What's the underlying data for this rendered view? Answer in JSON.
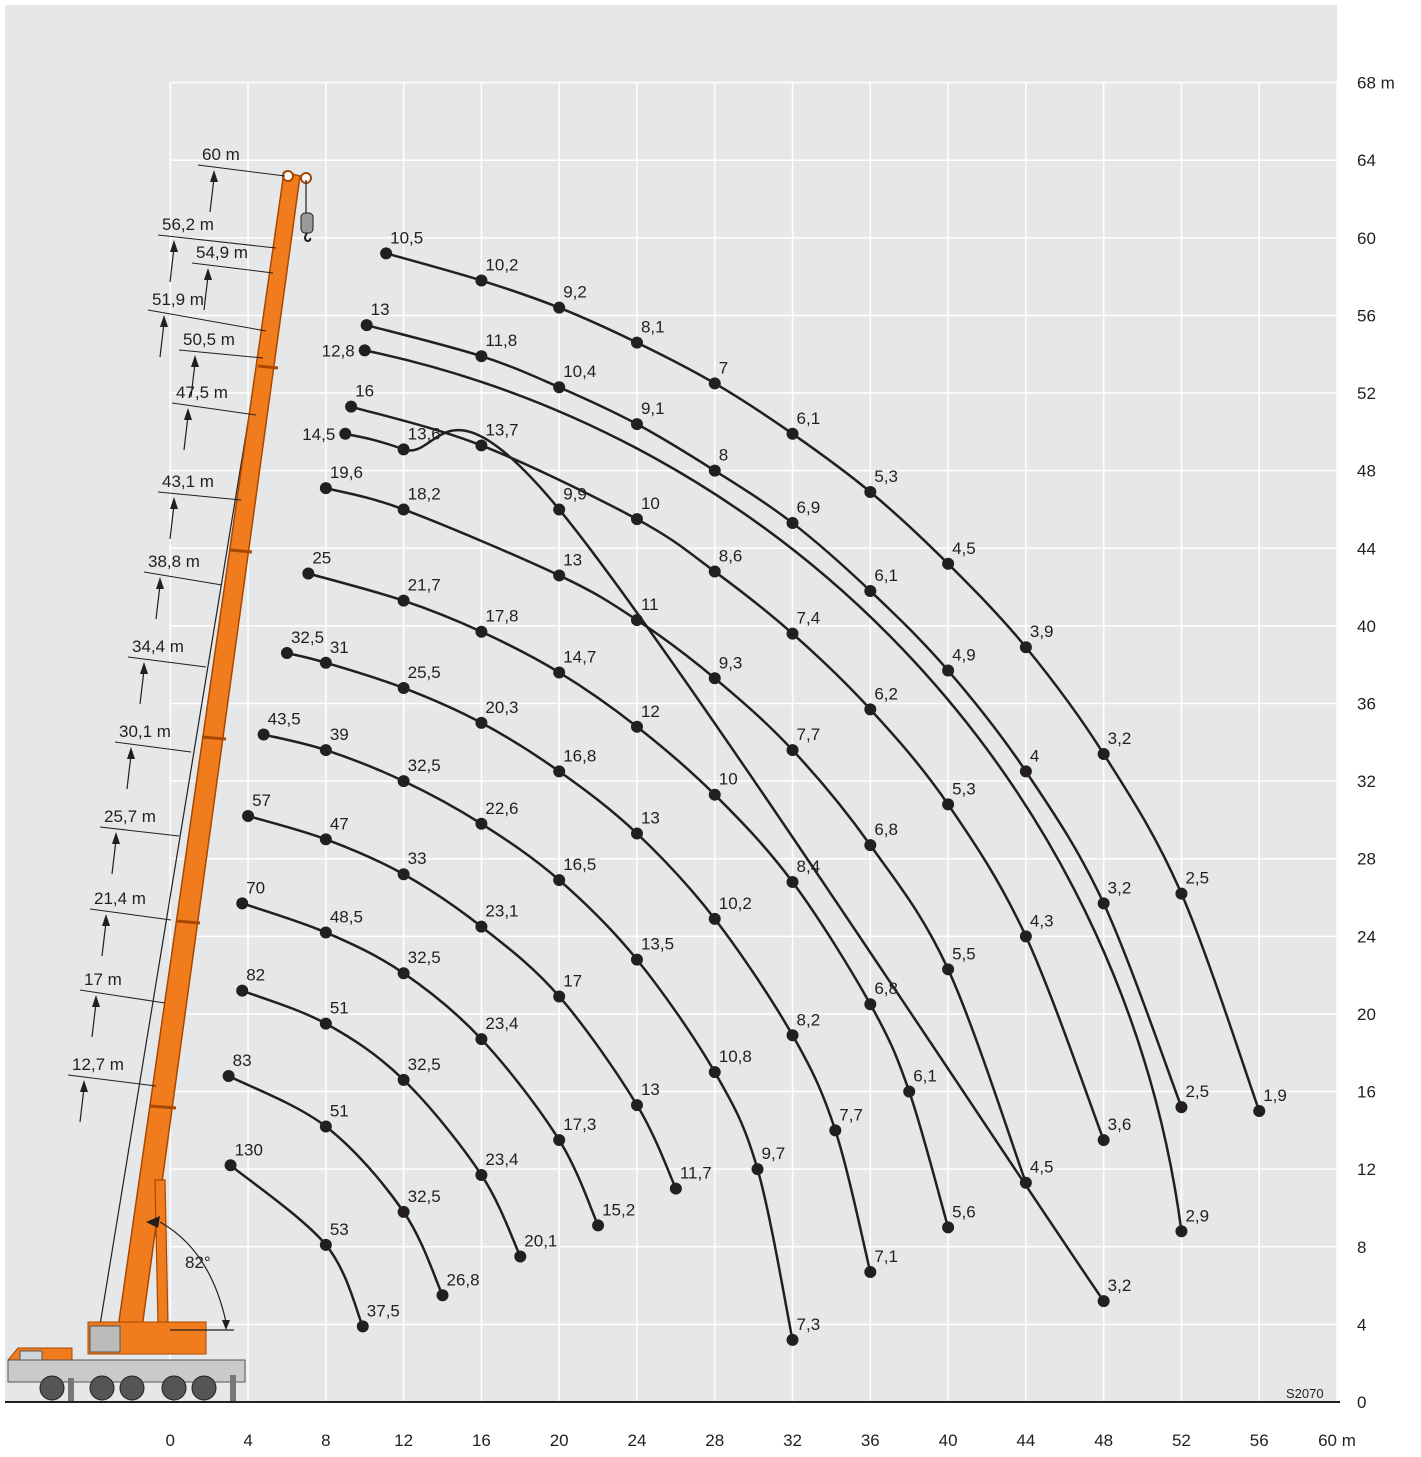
{
  "chart_data": {
    "type": "load_curves",
    "xlim": [
      -8.5,
      60
    ],
    "ylim": [
      0,
      72
    ],
    "xticks": [
      0,
      4,
      8,
      12,
      16,
      20,
      24,
      28,
      32,
      36,
      40,
      44,
      48,
      52,
      56,
      {
        "value": 60,
        "label": "60 m"
      }
    ],
    "yticks": [
      0,
      4,
      8,
      12,
      16,
      20,
      24,
      28,
      32,
      36,
      40,
      44,
      48,
      52,
      56,
      60,
      64,
      {
        "value": 68,
        "label": "68 m"
      }
    ],
    "grid": true,
    "background": "#e6e7e9",
    "grid_color": "#ffffff",
    "line_color": "#231f20",
    "boom_color": "#f07c1e",
    "boom_lengths": [
      "60 m",
      "56,2 m",
      "54,9 m",
      "51,9 m",
      "50,5 m",
      "47,5 m",
      "43,1 m",
      "38,8 m",
      "34,4 m",
      "30,1 m",
      "25,7 m",
      "21,4 m",
      "17 m",
      "12,7 m"
    ],
    "angle_label": "82°",
    "code": "S2070",
    "curves": [
      {
        "x": [
          11.1,
          16,
          20,
          24,
          28,
          32,
          36,
          40,
          44,
          48,
          52,
          56
        ],
        "y": [
          59.2,
          57.8,
          56.4,
          54.6,
          52.5,
          49.9,
          46.9,
          43.2,
          38.9,
          33.4,
          26.2,
          15.0
        ],
        "values": [
          10.5,
          10.2,
          9.2,
          8.1,
          7,
          6.1,
          5.3,
          4.5,
          3.9,
          3.2,
          2.5,
          1.9
        ],
        "value_labels": [
          "10,5",
          "10,2",
          "9,2",
          "8,1",
          "7",
          "6,1",
          "5,3",
          "4,5",
          "3,9",
          "3,2",
          "2,5",
          "1,9"
        ]
      },
      {
        "x": [
          10.1,
          16,
          20,
          24,
          28,
          32,
          36,
          40,
          44,
          48,
          52
        ],
        "y": [
          55.5,
          53.9,
          52.3,
          50.4,
          48.0,
          45.3,
          41.8,
          37.7,
          32.5,
          25.7,
          15.2
        ],
        "values": [
          13,
          11.8,
          10.4,
          9.1,
          8,
          6.9,
          6.1,
          4.9,
          4,
          3.2,
          2.5
        ],
        "value_labels": [
          "13",
          "11,8",
          "10,4",
          "9,1",
          "8",
          "6,9",
          "6,1",
          "4,9",
          "4",
          "3,2",
          "2,5"
        ]
      },
      {
        "x": [
          10.0,
          52
        ],
        "y": [
          54.2,
          8.8
        ],
        "values": [
          12.8,
          2.9
        ],
        "value_labels": [
          "12,8",
          "2,9"
        ]
      },
      {
        "x": [
          9.3,
          16,
          24,
          28,
          32,
          36,
          40,
          44,
          48
        ],
        "y": [
          51.3,
          49.3,
          45.5,
          42.8,
          39.6,
          35.7,
          30.8,
          24.0,
          13.5
        ],
        "values": [
          16,
          13.7,
          10,
          8.6,
          7.4,
          6.2,
          5.3,
          4.3,
          3.6
        ],
        "value_labels": [
          "16",
          "13,7",
          "10",
          "8,6",
          "7,4",
          "6,2",
          "5,3",
          "4,3",
          "3,6"
        ]
      },
      {
        "x": [
          9.0,
          12,
          20,
          48
        ],
        "y": [
          49.9,
          49.1,
          46.0,
          5.2
        ],
        "values": [
          14.5,
          13.6,
          9.9,
          3.2
        ],
        "value_labels": [
          "14,5",
          "13,6",
          "9,9",
          "3,2"
        ]
      },
      {
        "x": [
          8.0,
          12,
          20,
          24,
          28,
          32,
          36,
          40,
          44
        ],
        "y": [
          47.1,
          46.0,
          42.6,
          40.3,
          37.3,
          33.6,
          28.7,
          22.3,
          11.3
        ],
        "values": [
          19.6,
          18.2,
          13,
          11,
          9.3,
          7.7,
          6.8,
          5.5,
          4.5
        ],
        "value_labels": [
          "19,6",
          "18,2",
          "13",
          "11",
          "9,3",
          "7,7",
          "6,8",
          "5,5",
          "4,5"
        ]
      },
      {
        "x": [
          7.1,
          12,
          16,
          20,
          24,
          28,
          32,
          36,
          38,
          40
        ],
        "y": [
          42.7,
          41.3,
          39.7,
          37.6,
          34.8,
          31.3,
          26.8,
          20.5,
          16.0,
          9.0
        ],
        "values": [
          25,
          21.7,
          17.8,
          14.7,
          12,
          10,
          8.4,
          6.8,
          6.1,
          5.6
        ],
        "value_labels": [
          "25",
          "21,7",
          "17,8",
          "14,7",
          "12",
          "10",
          "8,4",
          "6,8",
          "6,1",
          "5,6"
        ]
      },
      {
        "x": [
          6.0,
          8,
          12,
          16,
          20,
          24,
          28,
          32,
          34.2,
          36
        ],
        "y": [
          38.6,
          38.1,
          36.8,
          35.0,
          32.5,
          29.3,
          24.9,
          18.9,
          14.0,
          6.7
        ],
        "values": [
          32.5,
          31,
          25.5,
          20.3,
          16.8,
          13,
          10.2,
          8.2,
          7.7,
          7.1
        ],
        "value_labels": [
          "32,5",
          "31",
          "25,5",
          "20,3",
          "16,8",
          "13",
          "10,2",
          "8,2",
          "7,7",
          "7,1"
        ]
      },
      {
        "x": [
          4.8,
          8,
          12,
          16,
          20,
          24,
          28,
          30.2,
          32
        ],
        "y": [
          34.4,
          33.6,
          32.0,
          29.8,
          26.9,
          22.8,
          17.0,
          12.0,
          3.2
        ],
        "values": [
          43.5,
          39,
          32.5,
          22.6,
          16.5,
          13.5,
          10.8,
          9.7,
          7.3
        ],
        "value_labels": [
          "43,5",
          "39",
          "32,5",
          "22,6",
          "16,5",
          "13,5",
          "10,8",
          "9,7",
          "7,3"
        ]
      },
      {
        "x": [
          4.0,
          8,
          12,
          16,
          20,
          24,
          26
        ],
        "y": [
          30.2,
          29.0,
          27.2,
          24.5,
          20.9,
          15.3,
          11.0
        ],
        "values": [
          57,
          47,
          33,
          23.1,
          17,
          13,
          11.7
        ],
        "value_labels": [
          "57",
          "47",
          "33",
          "23,1",
          "17",
          "13",
          "11,7"
        ]
      },
      {
        "x": [
          3.7,
          8,
          12,
          16,
          20,
          22
        ],
        "y": [
          25.7,
          24.2,
          22.1,
          18.7,
          13.5,
          9.1
        ],
        "values": [
          70,
          48.5,
          32.5,
          23.4,
          17.3,
          15.2
        ],
        "value_labels": [
          "70",
          "48,5",
          "32,5",
          "23,4",
          "17,3",
          "15,2"
        ]
      },
      {
        "x": [
          3.7,
          8,
          12,
          16,
          18
        ],
        "y": [
          21.2,
          19.5,
          16.6,
          11.7,
          7.5
        ],
        "values": [
          82,
          51,
          32.5,
          23.4,
          20.1
        ],
        "value_labels": [
          "82",
          "51",
          "32,5",
          "23,4",
          "20,1"
        ]
      },
      {
        "x": [
          3.0,
          8,
          12,
          14
        ],
        "y": [
          16.8,
          14.2,
          9.8,
          5.5
        ],
        "values": [
          83,
          51,
          32.5,
          26.8
        ],
        "value_labels": [
          "83",
          "51",
          "32,5",
          "26,8"
        ]
      },
      {
        "x": [
          3.1,
          8,
          9.9
        ],
        "y": [
          12.2,
          8.1,
          3.9
        ],
        "values": [
          130,
          53,
          37.5
        ],
        "value_labels": [
          "130",
          "53",
          "37,5"
        ]
      }
    ]
  }
}
